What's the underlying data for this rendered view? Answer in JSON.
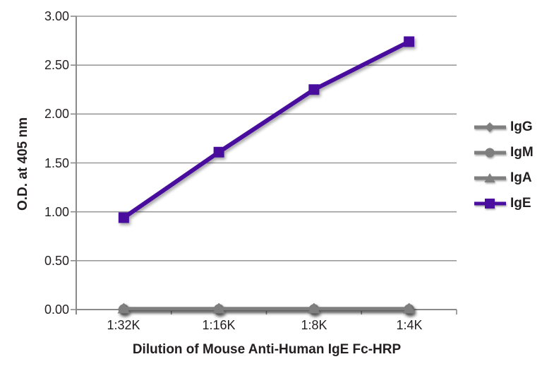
{
  "chart_data": {
    "type": "line",
    "title": "",
    "xlabel": "Dilution of Mouse Anti-Human IgE Fc-HRP",
    "ylabel": "O.D. at 405 nm",
    "categories": [
      "1:32K",
      "1:16K",
      "1:8K",
      "1:4K"
    ],
    "series": [
      {
        "name": "IgG",
        "marker": "diamond",
        "color": "#7f7f7f",
        "values": [
          0.01,
          0.01,
          0.01,
          0.01
        ]
      },
      {
        "name": "IgM",
        "marker": "circle",
        "color": "#7f7f7f",
        "values": [
          0.0,
          0.0,
          0.0,
          0.0
        ]
      },
      {
        "name": "IgA",
        "marker": "triangle",
        "color": "#7f7f7f",
        "values": [
          0.01,
          0.01,
          0.01,
          0.01
        ]
      },
      {
        "name": "IgE",
        "marker": "square",
        "color": "#4a0f9e",
        "values": [
          0.94,
          1.61,
          2.25,
          2.74
        ]
      }
    ],
    "ylim": [
      0,
      3
    ],
    "ytick_labels": [
      "0.00",
      "0.50",
      "1.00",
      "1.50",
      "2.00",
      "2.50",
      "3.00"
    ],
    "grid": true,
    "legend_position": "right",
    "colors": {
      "gridline": "#9c9c9c",
      "axis": "#8a8a8a",
      "text": "#231f20",
      "gray_series": "#7f7f7f",
      "ige_purple": "#4a0f9e"
    }
  }
}
